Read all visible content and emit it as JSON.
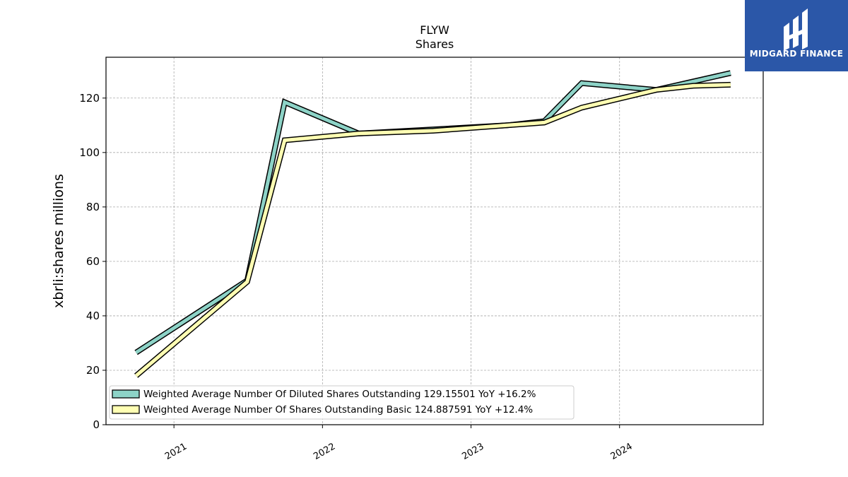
{
  "chart_data": {
    "type": "line",
    "title": "FLYW",
    "subtitle": "Shares",
    "ylabel": "xbrli:shares millions",
    "ylim": [
      0,
      135
    ],
    "xlim": [
      "2020-07-18",
      "2024-12-19"
    ],
    "yticks": [
      0,
      20,
      40,
      60,
      80,
      100,
      120
    ],
    "xticks": [
      {
        "date": "2021-01-01",
        "label": "2021"
      },
      {
        "date": "2022-01-01",
        "label": "2022"
      },
      {
        "date": "2023-01-01",
        "label": "2023"
      },
      {
        "date": "2024-01-01",
        "label": "2024"
      }
    ],
    "grid": true,
    "legend_position": "lower-left",
    "series": [
      {
        "name": "Weighted Average Number Of Diluted Shares Outstanding",
        "legend_label": "Weighted Average Number Of Diluted Shares Outstanding  129.15501 YoY +16.2%",
        "color": "#8dd3c7",
        "points": [
          {
            "x": "2020-09-30",
            "y": 26.5
          },
          {
            "x": "2021-06-30",
            "y": 53.0
          },
          {
            "x": "2021-09-30",
            "y": 118.5
          },
          {
            "x": "2022-03-31",
            "y": 107.0
          },
          {
            "x": "2022-09-30",
            "y": 108.5
          },
          {
            "x": "2023-03-31",
            "y": 110.0
          },
          {
            "x": "2023-06-30",
            "y": 111.5
          },
          {
            "x": "2023-09-30",
            "y": 125.5
          },
          {
            "x": "2024-03-31",
            "y": 123.0
          },
          {
            "x": "2024-09-30",
            "y": 129.2
          }
        ]
      },
      {
        "name": "Weighted Average Number Of Shares Outstanding Basic",
        "legend_label": "Weighted Average Number Of Shares Outstanding Basic  124.887591 YoY +12.4%",
        "color": "#ffffb3",
        "points": [
          {
            "x": "2020-09-30",
            "y": 18.0
          },
          {
            "x": "2021-06-30",
            "y": 52.5
          },
          {
            "x": "2021-09-30",
            "y": 104.5
          },
          {
            "x": "2022-03-31",
            "y": 107.0
          },
          {
            "x": "2022-09-30",
            "y": 108.0
          },
          {
            "x": "2023-03-31",
            "y": 110.0
          },
          {
            "x": "2023-06-30",
            "y": 111.0
          },
          {
            "x": "2023-09-30",
            "y": 116.5
          },
          {
            "x": "2024-03-31",
            "y": 123.0
          },
          {
            "x": "2024-06-30",
            "y": 124.5
          },
          {
            "x": "2024-09-30",
            "y": 124.9
          }
        ]
      }
    ]
  },
  "logo": {
    "text": "MIDGARD FINANCE",
    "background": "#2b57a8"
  }
}
